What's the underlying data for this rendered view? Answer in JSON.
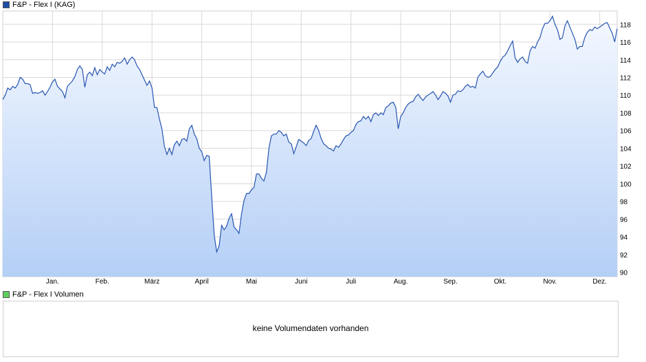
{
  "legend": {
    "price_label": "F&P - Flex I (KAG)",
    "volume_label": "F&P - Flex I Volumen"
  },
  "colors": {
    "line": "#2554b0",
    "fill_top": "#f4f8ff",
    "fill_bottom": "#b4cff6",
    "grid": "#d8d8d8",
    "price_swatch": "#1f4ea8",
    "volume_swatch": "#5fcf5f"
  },
  "volume_panel": {
    "message": "keine Volumendaten vorhanden"
  },
  "chart_data": {
    "type": "area",
    "title": "",
    "xlabel": "",
    "ylabel": "",
    "grid": true,
    "ylim": [
      89.5,
      119.5
    ],
    "y_ticks": [
      90,
      92,
      94,
      96,
      98,
      100,
      102,
      104,
      106,
      108,
      110,
      112,
      114,
      116,
      118
    ],
    "x_range": [
      0,
      12.35
    ],
    "x_ticks": [
      {
        "label": "Jan.",
        "x": 1
      },
      {
        "label": "Feb.",
        "x": 2
      },
      {
        "label": "März",
        "x": 3
      },
      {
        "label": "April",
        "x": 4
      },
      {
        "label": "Mai",
        "x": 5
      },
      {
        "label": "Juni",
        "x": 6
      },
      {
        "label": "Juli",
        "x": 7
      },
      {
        "label": "Aug.",
        "x": 8
      },
      {
        "label": "Sep.",
        "x": 9
      },
      {
        "label": "Okt.",
        "x": 10
      },
      {
        "label": "Nov.",
        "x": 11
      },
      {
        "label": "Dez.",
        "x": 12
      }
    ],
    "series": [
      {
        "name": "F&P - Flex I (KAG)",
        "points": [
          [
            0.0,
            109.5
          ],
          [
            0.05,
            110.0
          ],
          [
            0.1,
            110.8
          ],
          [
            0.15,
            110.6
          ],
          [
            0.2,
            111.0
          ],
          [
            0.25,
            110.8
          ],
          [
            0.3,
            111.2
          ],
          [
            0.35,
            112.0
          ],
          [
            0.4,
            111.8
          ],
          [
            0.45,
            111.3
          ],
          [
            0.5,
            111.3
          ],
          [
            0.55,
            111.2
          ],
          [
            0.6,
            110.2
          ],
          [
            0.65,
            110.3
          ],
          [
            0.7,
            110.2
          ],
          [
            0.75,
            110.3
          ],
          [
            0.8,
            110.5
          ],
          [
            0.85,
            110.0
          ],
          [
            0.9,
            110.4
          ],
          [
            0.95,
            110.9
          ],
          [
            1.0,
            111.5
          ],
          [
            1.05,
            111.8
          ],
          [
            1.1,
            111.0
          ],
          [
            1.15,
            110.7
          ],
          [
            1.2,
            110.4
          ],
          [
            1.25,
            109.7
          ],
          [
            1.3,
            111.0
          ],
          [
            1.35,
            111.3
          ],
          [
            1.4,
            111.6
          ],
          [
            1.45,
            112.1
          ],
          [
            1.5,
            112.9
          ],
          [
            1.55,
            113.3
          ],
          [
            1.6,
            112.9
          ],
          [
            1.65,
            110.9
          ],
          [
            1.7,
            112.3
          ],
          [
            1.75,
            112.6
          ],
          [
            1.8,
            112.2
          ],
          [
            1.85,
            113.1
          ],
          [
            1.9,
            112.3
          ],
          [
            1.95,
            112.9
          ],
          [
            2.0,
            112.6
          ],
          [
            2.05,
            112.4
          ],
          [
            2.1,
            113.2
          ],
          [
            2.15,
            112.8
          ],
          [
            2.2,
            113.5
          ],
          [
            2.25,
            113.2
          ],
          [
            2.3,
            113.7
          ],
          [
            2.35,
            113.6
          ],
          [
            2.4,
            113.8
          ],
          [
            2.45,
            114.2
          ],
          [
            2.5,
            113.5
          ],
          [
            2.55,
            114.0
          ],
          [
            2.6,
            114.3
          ],
          [
            2.65,
            114.0
          ],
          [
            2.7,
            113.3
          ],
          [
            2.75,
            112.9
          ],
          [
            2.8,
            112.3
          ],
          [
            2.85,
            111.7
          ],
          [
            2.9,
            111.1
          ],
          [
            2.95,
            111.6
          ],
          [
            3.0,
            110.8
          ],
          [
            3.05,
            108.6
          ],
          [
            3.1,
            108.6
          ],
          [
            3.15,
            107.3
          ],
          [
            3.2,
            106.2
          ],
          [
            3.25,
            104.2
          ],
          [
            3.3,
            103.3
          ],
          [
            3.35,
            104.0
          ],
          [
            3.4,
            103.3
          ],
          [
            3.45,
            104.4
          ],
          [
            3.5,
            104.8
          ],
          [
            3.55,
            104.3
          ],
          [
            3.6,
            105.0
          ],
          [
            3.65,
            105.1
          ],
          [
            3.7,
            104.8
          ],
          [
            3.75,
            106.2
          ],
          [
            3.8,
            106.6
          ],
          [
            3.85,
            105.6
          ],
          [
            3.9,
            105.1
          ],
          [
            3.95,
            104.0
          ],
          [
            4.0,
            103.6
          ],
          [
            4.05,
            102.6
          ],
          [
            4.1,
            103.2
          ],
          [
            4.15,
            103.1
          ],
          [
            4.2,
            98.6
          ],
          [
            4.25,
            94.2
          ],
          [
            4.3,
            92.3
          ],
          [
            4.35,
            93.0
          ],
          [
            4.4,
            95.3
          ],
          [
            4.45,
            94.8
          ],
          [
            4.5,
            95.2
          ],
          [
            4.55,
            96.1
          ],
          [
            4.6,
            96.6
          ],
          [
            4.65,
            95.1
          ],
          [
            4.7,
            94.8
          ],
          [
            4.75,
            94.4
          ],
          [
            4.8,
            96.6
          ],
          [
            4.85,
            98.1
          ],
          [
            4.9,
            98.9
          ],
          [
            4.95,
            98.9
          ],
          [
            5.0,
            99.3
          ],
          [
            5.05,
            99.6
          ],
          [
            5.1,
            101.1
          ],
          [
            5.15,
            101.1
          ],
          [
            5.2,
            100.6
          ],
          [
            5.25,
            100.3
          ],
          [
            5.3,
            101.3
          ],
          [
            5.35,
            104.0
          ],
          [
            5.4,
            105.4
          ],
          [
            5.45,
            105.6
          ],
          [
            5.5,
            105.6
          ],
          [
            5.55,
            106.0
          ],
          [
            5.6,
            105.8
          ],
          [
            5.65,
            105.4
          ],
          [
            5.7,
            105.6
          ],
          [
            5.75,
            104.7
          ],
          [
            5.8,
            104.5
          ],
          [
            5.85,
            103.4
          ],
          [
            5.9,
            104.2
          ],
          [
            5.95,
            105.0
          ],
          [
            6.0,
            104.8
          ],
          [
            6.05,
            104.6
          ],
          [
            6.1,
            104.3
          ],
          [
            6.15,
            104.9
          ],
          [
            6.2,
            105.1
          ],
          [
            6.25,
            105.9
          ],
          [
            6.3,
            106.6
          ],
          [
            6.35,
            106.0
          ],
          [
            6.4,
            105.1
          ],
          [
            6.45,
            104.5
          ],
          [
            6.5,
            104.3
          ],
          [
            6.55,
            104.0
          ],
          [
            6.6,
            103.9
          ],
          [
            6.65,
            103.7
          ],
          [
            6.7,
            104.3
          ],
          [
            6.75,
            104.1
          ],
          [
            6.8,
            104.5
          ],
          [
            6.85,
            105.0
          ],
          [
            6.9,
            105.4
          ],
          [
            6.95,
            105.5
          ],
          [
            7.0,
            105.8
          ],
          [
            7.05,
            106.0
          ],
          [
            7.1,
            106.7
          ],
          [
            7.15,
            107.0
          ],
          [
            7.2,
            107.1
          ],
          [
            7.25,
            107.6
          ],
          [
            7.3,
            107.3
          ],
          [
            7.35,
            107.6
          ],
          [
            7.4,
            107.0
          ],
          [
            7.45,
            107.8
          ],
          [
            7.5,
            108.0
          ],
          [
            7.55,
            107.7
          ],
          [
            7.6,
            108.0
          ],
          [
            7.65,
            107.8
          ],
          [
            7.7,
            108.6
          ],
          [
            7.75,
            108.8
          ],
          [
            7.8,
            109.1
          ],
          [
            7.85,
            109.2
          ],
          [
            7.9,
            108.6
          ],
          [
            7.95,
            106.2
          ],
          [
            8.0,
            107.6
          ],
          [
            8.05,
            108.0
          ],
          [
            8.1,
            108.6
          ],
          [
            8.15,
            109.0
          ],
          [
            8.2,
            109.2
          ],
          [
            8.25,
            109.3
          ],
          [
            8.3,
            109.8
          ],
          [
            8.35,
            110.1
          ],
          [
            8.4,
            109.7
          ],
          [
            8.45,
            109.4
          ],
          [
            8.5,
            109.8
          ],
          [
            8.55,
            110.0
          ],
          [
            8.6,
            110.2
          ],
          [
            8.65,
            110.4
          ],
          [
            8.7,
            110.0
          ],
          [
            8.75,
            109.5
          ],
          [
            8.8,
            109.9
          ],
          [
            8.85,
            110.4
          ],
          [
            8.9,
            110.2
          ],
          [
            8.95,
            109.9
          ],
          [
            9.0,
            109.2
          ],
          [
            9.05,
            110.0
          ],
          [
            9.1,
            110.1
          ],
          [
            9.15,
            110.5
          ],
          [
            9.2,
            110.4
          ],
          [
            9.25,
            110.6
          ],
          [
            9.3,
            111.0
          ],
          [
            9.35,
            111.2
          ],
          [
            9.4,
            110.9
          ],
          [
            9.45,
            111.0
          ],
          [
            9.5,
            110.8
          ],
          [
            9.55,
            112.0
          ],
          [
            9.6,
            112.4
          ],
          [
            9.65,
            112.7
          ],
          [
            9.7,
            112.2
          ],
          [
            9.75,
            112.0
          ],
          [
            9.8,
            112.1
          ],
          [
            9.85,
            112.5
          ],
          [
            9.9,
            112.9
          ],
          [
            9.95,
            113.2
          ],
          [
            10.0,
            113.8
          ],
          [
            10.05,
            114.3
          ],
          [
            10.1,
            114.5
          ],
          [
            10.15,
            115.0
          ],
          [
            10.2,
            115.6
          ],
          [
            10.25,
            116.1
          ],
          [
            10.3,
            114.2
          ],
          [
            10.35,
            113.7
          ],
          [
            10.4,
            114.1
          ],
          [
            10.45,
            114.3
          ],
          [
            10.5,
            113.8
          ],
          [
            10.55,
            113.6
          ],
          [
            10.6,
            115.0
          ],
          [
            10.65,
            115.5
          ],
          [
            10.7,
            115.3
          ],
          [
            10.75,
            116.0
          ],
          [
            10.8,
            116.5
          ],
          [
            10.85,
            117.5
          ],
          [
            10.9,
            118.1
          ],
          [
            10.95,
            118.1
          ],
          [
            11.0,
            118.4
          ],
          [
            11.05,
            118.9
          ],
          [
            11.1,
            118.0
          ],
          [
            11.15,
            117.4
          ],
          [
            11.2,
            116.3
          ],
          [
            11.25,
            116.5
          ],
          [
            11.3,
            117.8
          ],
          [
            11.35,
            118.4
          ],
          [
            11.4,
            117.7
          ],
          [
            11.45,
            117.0
          ],
          [
            11.5,
            116.3
          ],
          [
            11.55,
            115.2
          ],
          [
            11.6,
            115.5
          ],
          [
            11.65,
            115.5
          ],
          [
            11.7,
            116.5
          ],
          [
            11.75,
            117.1
          ],
          [
            11.8,
            117.4
          ],
          [
            11.85,
            117.3
          ],
          [
            11.9,
            117.7
          ],
          [
            11.95,
            117.5
          ],
          [
            12.0,
            117.7
          ],
          [
            12.05,
            117.9
          ],
          [
            12.1,
            118.1
          ],
          [
            12.15,
            118.2
          ],
          [
            12.2,
            117.6
          ],
          [
            12.25,
            117.0
          ],
          [
            12.3,
            116.0
          ],
          [
            12.35,
            117.5
          ]
        ]
      }
    ]
  }
}
